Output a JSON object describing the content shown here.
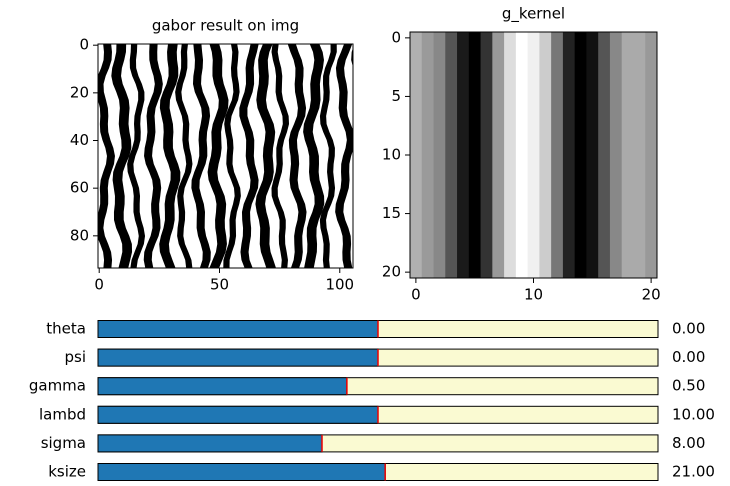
{
  "panels": [
    {
      "title": "gabor result on img",
      "xlim": [
        -0.5,
        105.5
      ],
      "ylim": [
        93.5,
        -0.5
      ],
      "xticks": [
        0,
        50,
        100
      ],
      "yticks": [
        0,
        20,
        40,
        60,
        80
      ]
    },
    {
      "title": "g_kernel",
      "xlim": [
        -0.5,
        20.5
      ],
      "ylim": [
        20.5,
        -0.5
      ],
      "xticks": [
        0,
        10,
        20
      ],
      "yticks": [
        0,
        5,
        10,
        15,
        20
      ]
    }
  ],
  "sliders": [
    {
      "label": "theta",
      "value": 0,
      "value_label": "0.00",
      "min": -3.14,
      "max": 3.14
    },
    {
      "label": "psi",
      "value": 0,
      "value_label": "0.00",
      "min": -3.14,
      "max": 3.14
    },
    {
      "label": "gamma",
      "value": 0.5,
      "value_label": "0.50",
      "min": 0.1,
      "max": 1
    },
    {
      "label": "lambd",
      "value": 10,
      "value_label": "10.00",
      "min": 0,
      "max": 20
    },
    {
      "label": "sigma",
      "value": 8,
      "value_label": "8.00",
      "min": 0,
      "max": 20
    },
    {
      "label": "ksize",
      "value": 21,
      "value_label": "21.00",
      "min": 1,
      "max": 40
    }
  ]
}
